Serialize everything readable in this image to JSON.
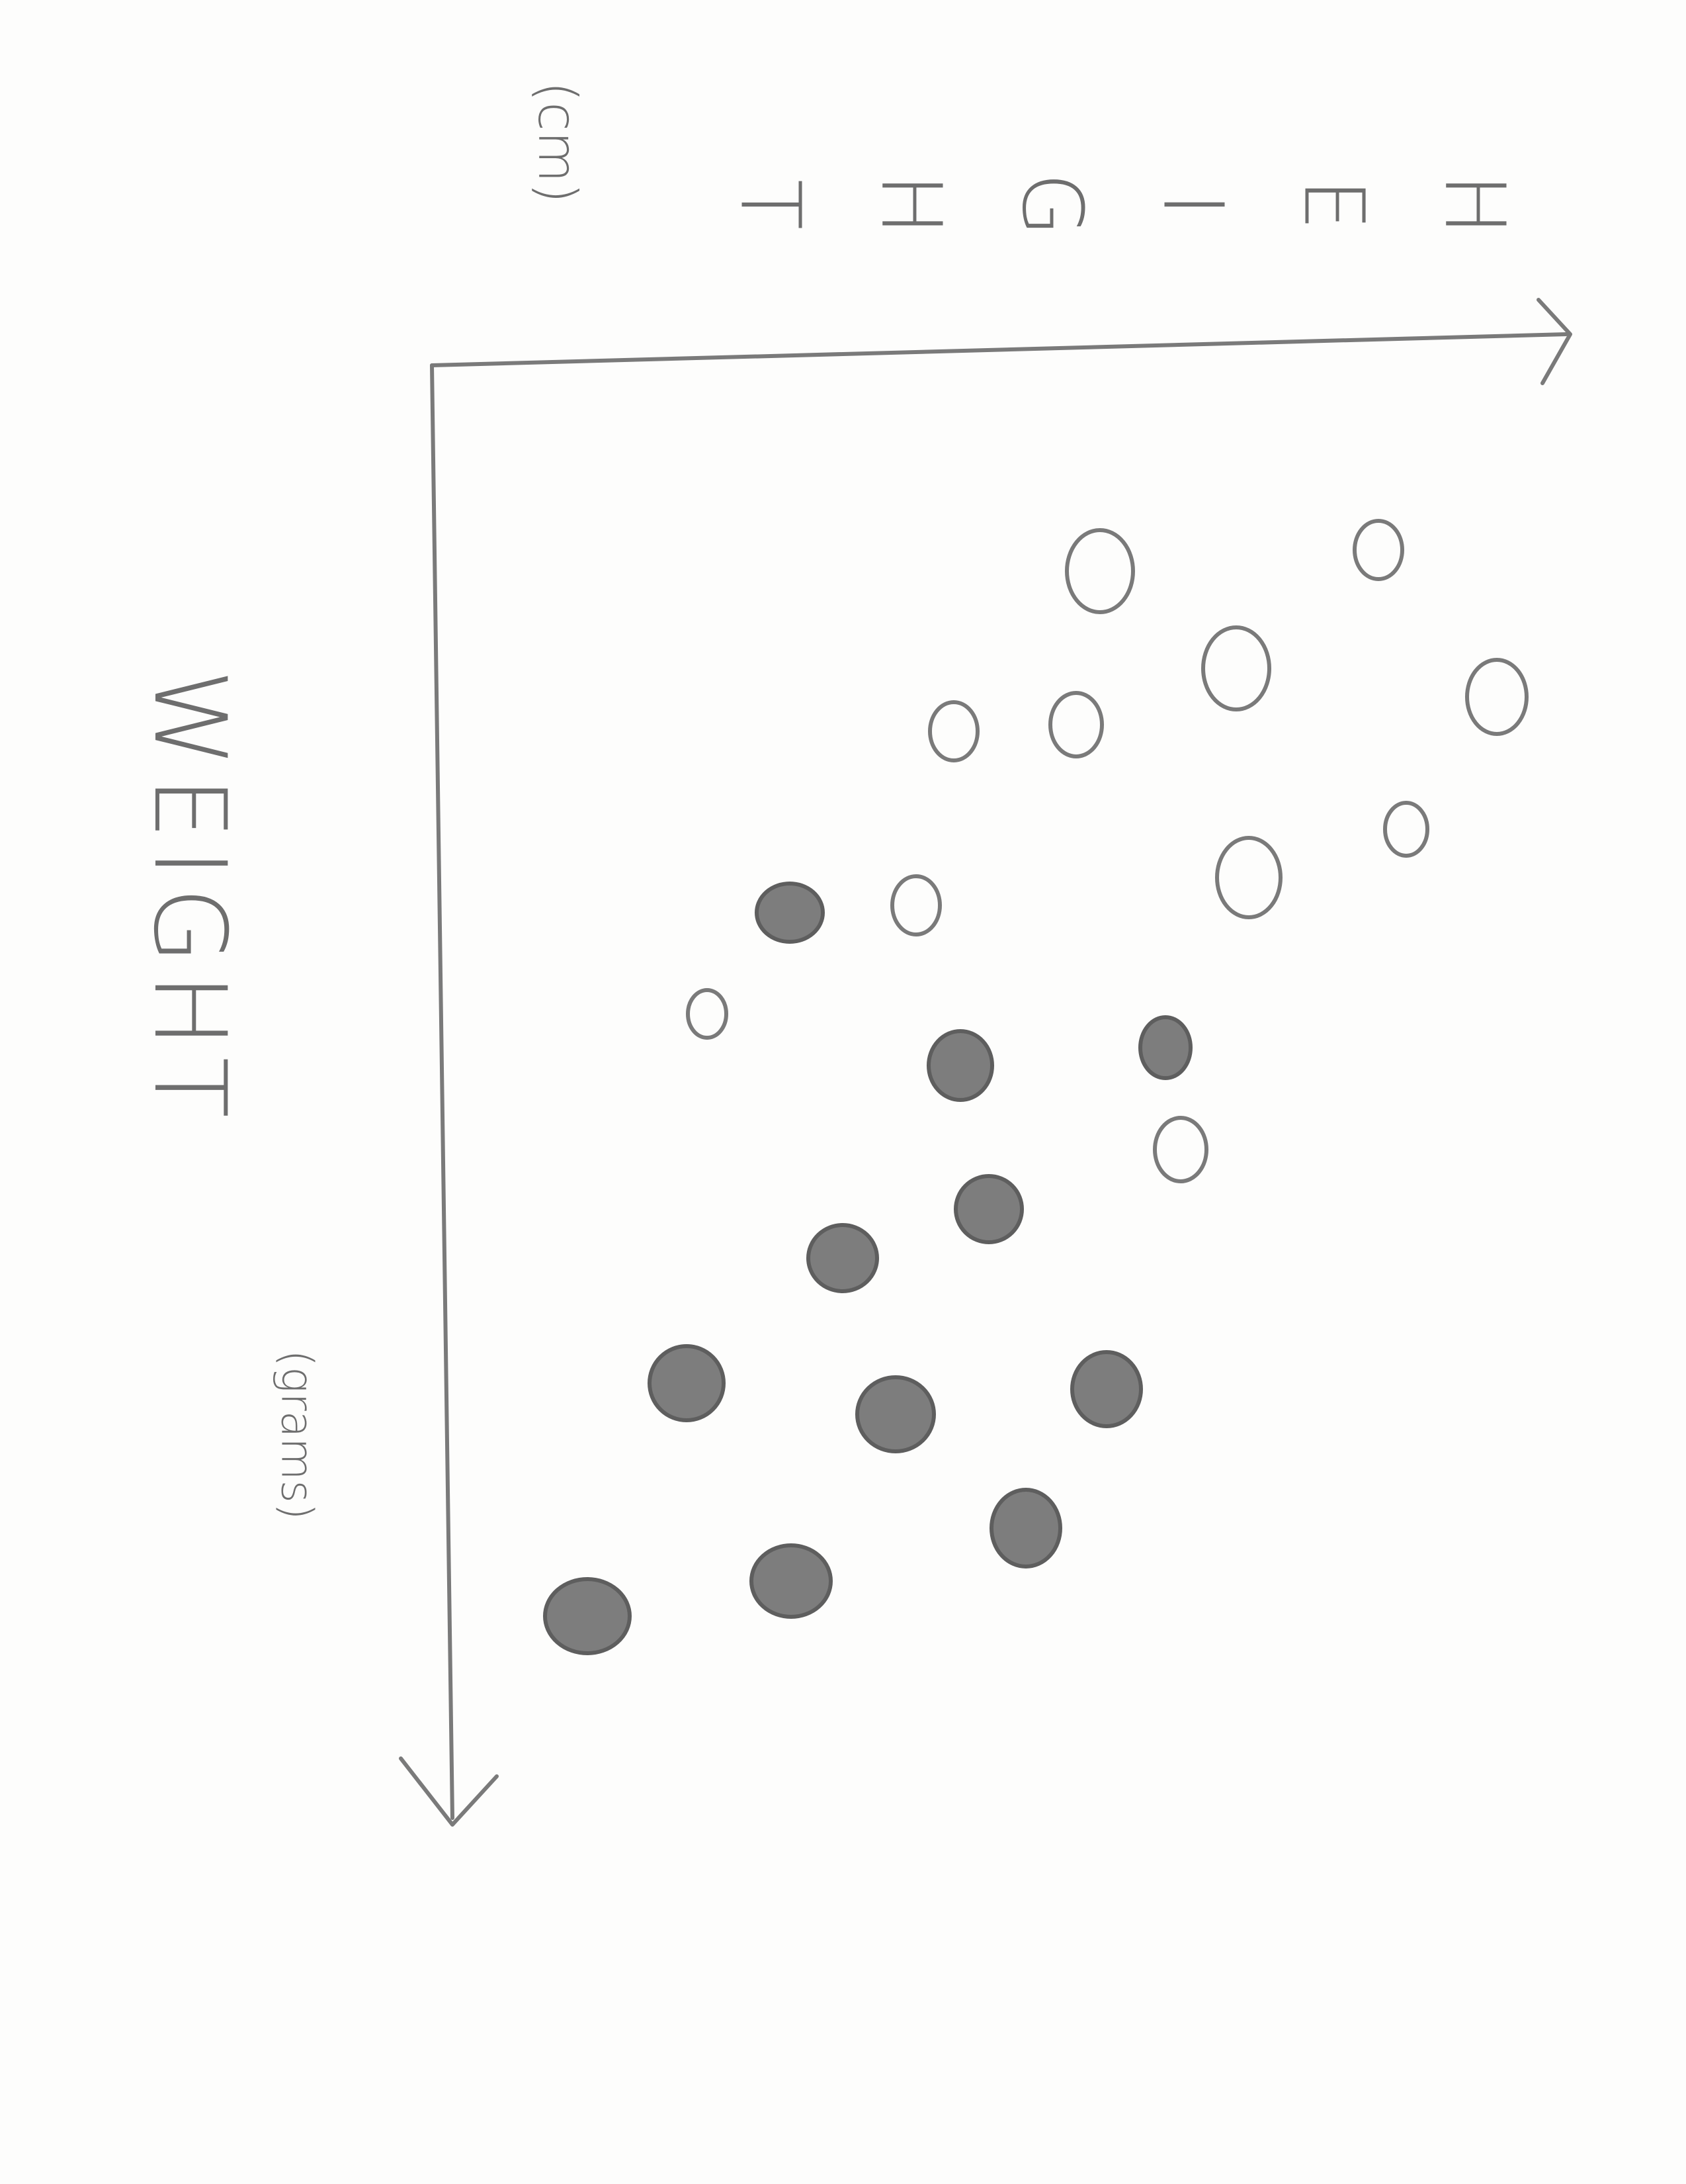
{
  "axes": {
    "horizontal_label": "HEIGHT",
    "horizontal_unit": "(cm)",
    "vertical_label": "WEIGHT",
    "vertical_unit": "(grams)"
  }
}
